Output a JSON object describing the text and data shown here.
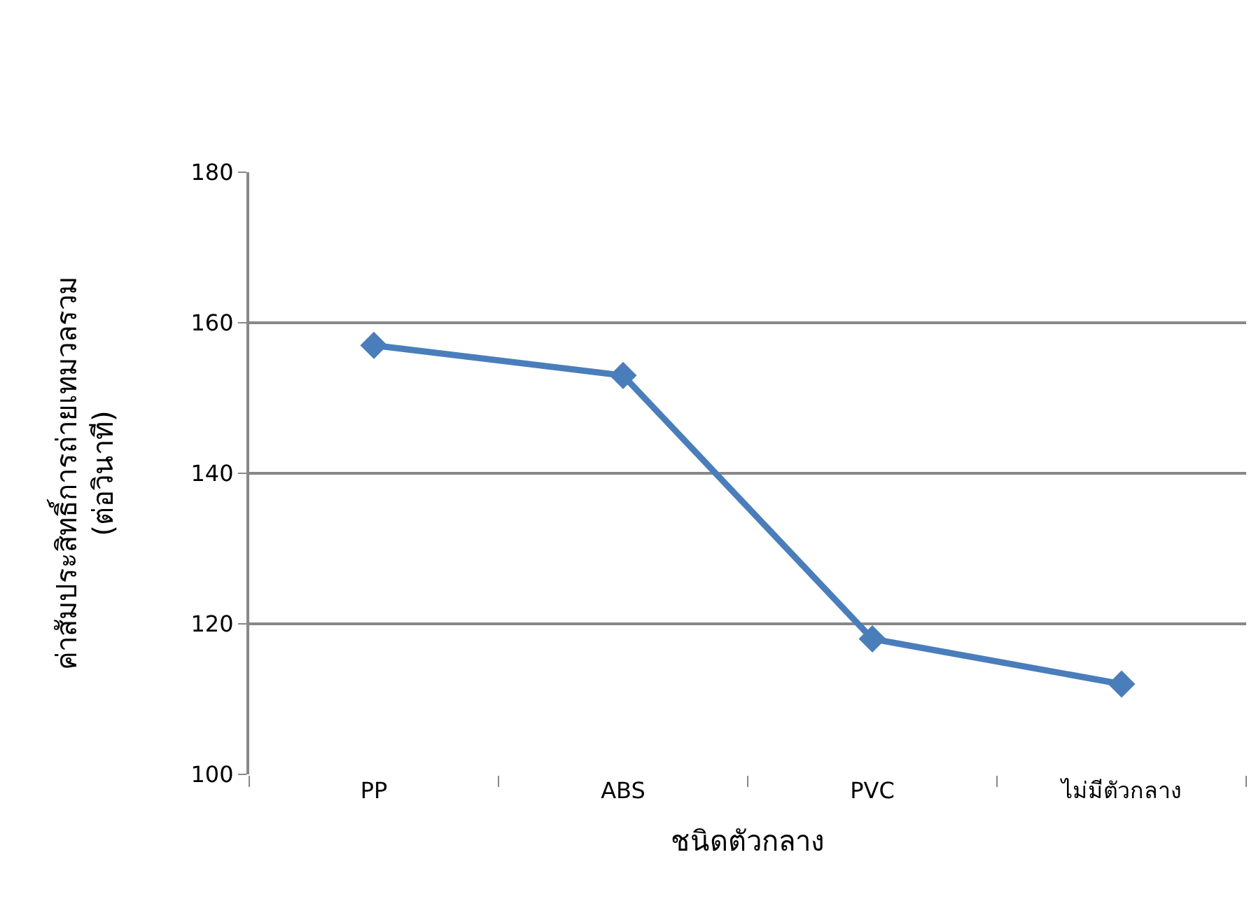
{
  "chart_data": {
    "type": "line",
    "xlabel": "ชนิดตัวกลาง",
    "ylabel": "ค่าสัมประสิทธิ์การถ่ายเทมวลรวม\n(ต่อวินาที)",
    "categories": [
      "PP",
      "ABS",
      "PVC",
      "ไม่มีตัวกลาง"
    ],
    "series": [
      {
        "color": "#4a7ebb",
        "values": [
          157,
          153,
          118,
          112
        ]
      }
    ],
    "ylim": [
      100,
      180
    ],
    "yticks": [
      100,
      120,
      140,
      160,
      180
    ],
    "grid": "y",
    "marker": "diamond",
    "line_style": "solid"
  }
}
